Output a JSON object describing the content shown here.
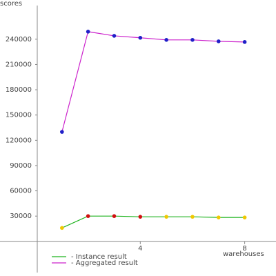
{
  "chart_data": {
    "type": "line",
    "y_label": "scores",
    "x_label": "warehouses",
    "x": [
      1,
      2,
      3,
      4,
      5,
      6,
      7,
      8
    ],
    "series": [
      {
        "name": "- Instance result",
        "color": "#1fb41f",
        "values": [
          16000,
          30000,
          30000,
          29200,
          29200,
          29200,
          28400,
          28400
        ],
        "point_colors": [
          "#f0c800",
          "#d01010",
          "#d01010",
          "#d01010",
          "#f0c800",
          "#f0c800",
          "#f0c800",
          "#f0c800"
        ]
      },
      {
        "name": "- Aggregated result",
        "color": "#cc22cc",
        "values": [
          130000,
          249000,
          244000,
          241700,
          239200,
          239200,
          237500,
          236700
        ],
        "point_colors": [
          "#2020c8",
          "#2020c8",
          "#2020c8",
          "#2020c8",
          "#2020c8",
          "#2020c8",
          "#2020c8",
          "#2020c8"
        ]
      }
    ],
    "xlim": [
      0,
      9.2
    ],
    "xticks": [
      4,
      8
    ],
    "ylim": [
      -37000,
      280000
    ],
    "yticks": [
      30000,
      60000,
      90000,
      120000,
      150000,
      180000,
      210000,
      240000
    ]
  }
}
